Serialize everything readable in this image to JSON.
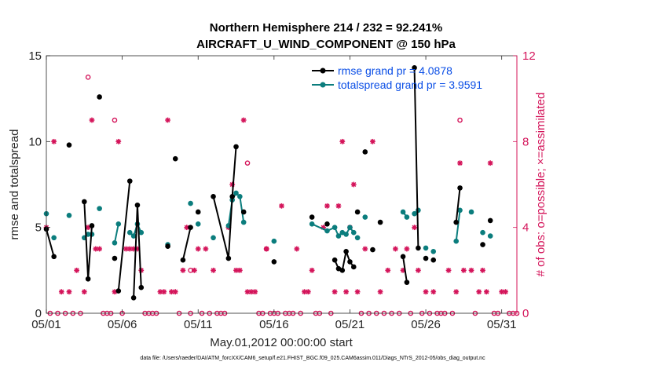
{
  "chart_data": {
    "type": "line",
    "title": "Northern Hemisphere 214 / 232 = 92.241%",
    "subtitle": "AIRCRAFT_U_WIND_COMPONENT @ 150 hPa",
    "xlabel": "May.01,2012 00:00:00 start",
    "ylabel": "rmse and totalspread",
    "ylabel_right": "# of obs: o=possible; ×=assimilated",
    "xlim": [
      1,
      32
    ],
    "ylim": [
      0,
      15
    ],
    "ylim_right": [
      0,
      12
    ],
    "x_ticks": [
      1,
      6,
      11,
      16,
      21,
      26,
      31
    ],
    "x_tick_labels": [
      "05/01",
      "05/06",
      "05/11",
      "05/16",
      "05/21",
      "05/26",
      "05/31"
    ],
    "y_ticks": [
      0,
      5,
      10,
      15
    ],
    "y_tick_labels": [
      "0",
      "5",
      "10",
      "15"
    ],
    "y_ticks_right": [
      0,
      4,
      8,
      12
    ],
    "y_tick_labels_right": [
      "0",
      "4",
      "8",
      "12"
    ],
    "grid": false,
    "legend_position": "top-right",
    "colors": {
      "rmse": "#000000",
      "spread": "#0b7d7d",
      "obs": "#d4145a",
      "legend_text": "#0a4ee6",
      "right_axis": "#d4145a"
    },
    "series": [
      {
        "name": "rmse grand pr = 4.0878",
        "color": "#000000",
        "x": [
          1.0,
          1.5,
          2.5,
          3.5,
          3.75,
          4.0,
          4.5,
          5.5,
          5.75,
          6.5,
          6.75,
          7.0,
          7.25,
          9.0,
          9.5,
          10.0,
          10.5,
          11.0,
          12.0,
          13.0,
          13.25,
          13.5,
          14.0,
          16.0,
          18.5,
          19.5,
          20.0,
          20.25,
          20.5,
          20.75,
          21.0,
          21.25,
          21.5,
          22.0,
          22.5,
          23.0,
          24.5,
          24.75,
          25.25,
          25.5,
          26.0,
          26.5,
          28.0,
          28.25,
          29.75,
          30.25
        ],
        "values": [
          4.9,
          3.3,
          9.8,
          6.5,
          2.0,
          5.1,
          12.6,
          3.2,
          1.3,
          7.7,
          0.9,
          6.3,
          1.5,
          3.9,
          9.0,
          3.1,
          5.0,
          5.9,
          6.8,
          3.2,
          6.8,
          9.7,
          5.9,
          3.0,
          5.6,
          5.2,
          3.1,
          2.6,
          2.5,
          3.6,
          3.0,
          2.7,
          5.9,
          9.4,
          3.7,
          5.3,
          3.3,
          1.8,
          14.3,
          3.8,
          3.2,
          3.1,
          5.3,
          7.3,
          4.0,
          5.4
        ],
        "segments": [
          [
            0,
            1
          ],
          [
            3,
            4,
            5
          ],
          [
            8,
            9
          ],
          [
            10,
            11,
            12
          ],
          [
            15,
            16
          ],
          [
            18,
            19,
            20,
            21
          ],
          [
            26,
            27,
            28,
            29,
            30,
            31
          ],
          [
            36,
            37
          ],
          [
            38,
            39
          ],
          [
            42,
            43
          ]
        ]
      },
      {
        "name": "totalspread grand pr = 3.9591",
        "color": "#0b7d7d",
        "x": [
          1.0,
          1.5,
          2.5,
          3.5,
          3.75,
          4.0,
          4.5,
          5.5,
          5.75,
          6.5,
          6.75,
          7.0,
          7.25,
          9.0,
          10.5,
          11.0,
          12.0,
          13.0,
          13.25,
          13.5,
          13.75,
          14.0,
          16.0,
          18.5,
          19.5,
          20.0,
          20.25,
          20.5,
          20.75,
          21.0,
          21.25,
          21.5,
          22.0,
          24.5,
          24.75,
          25.25,
          25.5,
          26.0,
          26.5,
          28.0,
          28.25,
          29.0,
          29.75,
          30.25
        ],
        "values": [
          5.8,
          4.4,
          5.7,
          4.4,
          4.6,
          4.6,
          6.1,
          4.1,
          5.2,
          4.7,
          4.5,
          5.2,
          4.7,
          4.0,
          6.4,
          5.2,
          4.4,
          5.1,
          6.6,
          7.0,
          6.8,
          5.3,
          4.2,
          5.2,
          4.8,
          5.0,
          4.5,
          4.7,
          4.6,
          5.0,
          4.7,
          4.4,
          5.6,
          5.9,
          5.6,
          5.8,
          6.0,
          3.8,
          3.6,
          4.2,
          6.0,
          5.9,
          4.7,
          4.5
        ],
        "segments": [
          [
            3,
            4,
            5
          ],
          [
            7,
            8
          ],
          [
            9,
            10,
            11,
            12
          ],
          [
            17,
            18,
            19,
            20,
            21
          ],
          [
            23,
            24,
            25,
            26,
            27,
            28,
            29,
            30
          ],
          [
            33,
            34
          ],
          [
            35,
            36
          ],
          [
            39,
            40
          ]
        ]
      }
    ],
    "obs_possible": {
      "x": [
        3.75,
        5.5,
        10.5,
        14.25,
        15.5,
        28.25
      ],
      "values": [
        11,
        9,
        2,
        7,
        3,
        9
      ]
    },
    "obs_assimilated": {
      "x": [
        1.0,
        1.5,
        2.0,
        2.5,
        3.0,
        3.5,
        3.75,
        4.0,
        4.25,
        4.5,
        5.5,
        5.75,
        6.25,
        6.5,
        6.75,
        7.0,
        7.25,
        8.5,
        8.75,
        9.0,
        9.25,
        9.5,
        10.0,
        10.25,
        10.75,
        11.0,
        11.5,
        12.0,
        13.0,
        13.25,
        13.5,
        13.75,
        14.0,
        14.25,
        14.5,
        14.75,
        15.5,
        16.5,
        17.5,
        18.0,
        18.25,
        18.5,
        19.25,
        19.5,
        20.0,
        20.25,
        20.5,
        20.75,
        21.0,
        21.25,
        21.5,
        22.0,
        22.5,
        23.0,
        23.5,
        24.0,
        24.5,
        24.75,
        25.25,
        25.5,
        26.0,
        26.5,
        27.5,
        28.0,
        28.25,
        28.5,
        29.0,
        29.5,
        29.75,
        30.0,
        30.25,
        31.0,
        31.25
      ],
      "values": [
        4,
        8,
        1,
        1,
        2,
        1,
        4,
        9,
        3,
        3,
        1,
        8,
        3,
        3,
        3,
        3,
        2,
        1,
        1,
        9,
        1,
        1,
        2,
        4,
        2,
        3,
        3,
        2,
        4,
        6,
        2,
        2,
        9,
        1,
        1,
        1,
        3,
        5,
        3,
        1,
        1,
        2,
        4,
        5,
        1,
        5,
        8,
        1,
        4,
        6,
        1,
        3,
        8,
        1,
        2,
        3,
        2,
        3,
        4,
        2,
        1,
        1,
        2,
        1,
        7,
        2,
        2,
        1,
        2,
        1,
        7,
        1,
        1
      ]
    },
    "obs_zero_x": [
      1.25,
      1.75,
      2.25,
      2.75,
      3.25,
      4.75,
      5.0,
      5.25,
      6.0,
      7.5,
      7.75,
      8.0,
      8.25,
      9.75,
      10.5,
      11.25,
      11.75,
      12.25,
      12.5,
      12.75,
      15.0,
      15.25,
      15.75,
      16.0,
      16.25,
      16.75,
      17.0,
      17.25,
      17.75,
      18.75,
      19.0,
      19.75,
      21.75,
      22.25,
      22.75,
      23.25,
      23.75,
      24.25,
      25.0,
      25.75,
      26.25,
      26.75,
      27.0,
      27.25,
      27.75,
      29.25,
      30.5,
      30.75,
      31.5,
      31.75,
      32.0
    ]
  },
  "footer": "data file: /Users/raeder/DAI/ATM_forcXX/CAM6_setup/f.e21.FHIST_BGC.f09_025.CAM6assim.011/Diags_NTrS_2012-05/obs_diag_output.nc"
}
